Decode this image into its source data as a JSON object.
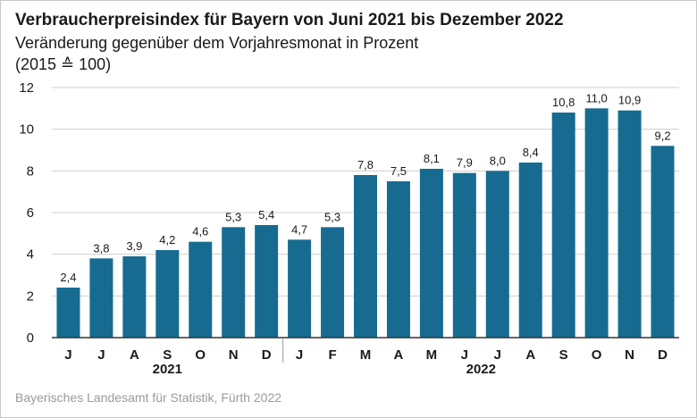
{
  "title": "Verbraucherpreisindex für Bayern von Juni 2021 bis Dezember 2022",
  "subtitle_line1": "Veränderung gegenüber dem Vorjahresmonat in Prozent",
  "subtitle_line2": "(2015 ≙ 100)",
  "source": "Bayerisches Landesamt für Statistik, Fürth 2022",
  "colors": {
    "bar": "#176b91",
    "grid": "#cfcfcf",
    "axis": "#333333"
  },
  "chart_data": {
    "type": "bar",
    "categories": [
      "J",
      "J",
      "A",
      "S",
      "O",
      "N",
      "D",
      "J",
      "F",
      "M",
      "A",
      "M",
      "J",
      "J",
      "A",
      "S",
      "O",
      "N",
      "D"
    ],
    "values": [
      2.4,
      3.8,
      3.9,
      4.2,
      4.6,
      5.3,
      5.4,
      4.7,
      5.3,
      7.8,
      7.5,
      8.1,
      7.9,
      8.0,
      8.4,
      10.8,
      11.0,
      10.9,
      9.2
    ],
    "value_labels": [
      "2,4",
      "3,8",
      "3,9",
      "4,2",
      "4,6",
      "5,3",
      "5,4",
      "4,7",
      "5,3",
      "7,8",
      "7,5",
      "8,1",
      "7,9",
      "8,0",
      "8,4",
      "10,8",
      "11,0",
      "10,9",
      "9,2"
    ],
    "year_groups": [
      {
        "label": "2021",
        "count": 7
      },
      {
        "label": "2022",
        "count": 12
      }
    ],
    "ylim": [
      0,
      12
    ],
    "yticks": [
      0,
      2,
      4,
      6,
      8,
      10,
      12
    ],
    "grid": true,
    "xlabel": "",
    "ylabel": ""
  }
}
